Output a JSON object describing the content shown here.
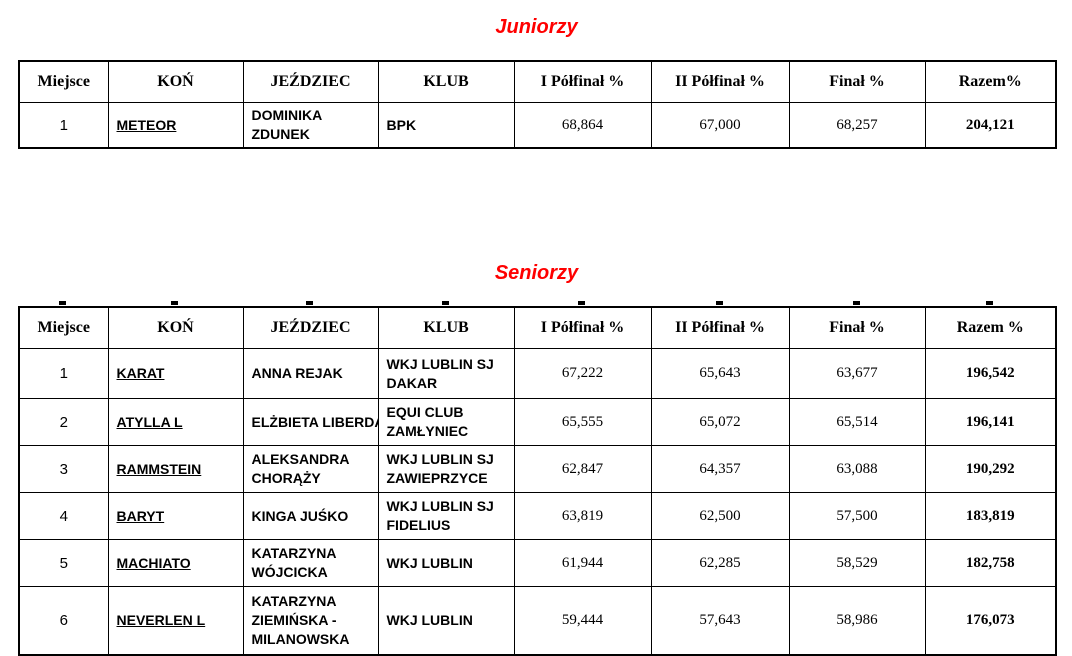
{
  "page": {
    "background": "#ffffff",
    "text_color": "#000000",
    "title_color": "#ff0000"
  },
  "sections": [
    {
      "title": "Juniorzy",
      "columns": {
        "place": "Miejsce",
        "horse": "KOŃ",
        "rider": "JEŹDZIEC",
        "club": "KLUB",
        "semi1": "I Półfinał %",
        "semi2": "II Półfinał %",
        "final": "Finał %",
        "total": "Razem%"
      },
      "rows": [
        {
          "place": "1",
          "horse": "METEOR",
          "rider": "DOMINIKA\nZDUNEK",
          "club": "BPK",
          "semi1": "68,864",
          "semi2": "67,000",
          "final": "68,257",
          "total": "204,121"
        }
      ]
    },
    {
      "title": "Seniorzy",
      "columns": {
        "place": "Miejsce",
        "horse": "KOŃ",
        "rider": "JEŹDZIEC",
        "club": "KLUB",
        "semi1": "I Półfinał %",
        "semi2": "II Półfinał %",
        "final": "Finał %",
        "total": "Razem %"
      },
      "rows": [
        {
          "place": "1",
          "horse": "KARAT",
          "rider": "ANNA REJAK",
          "club": "WKJ LUBLIN SJ\nDAKAR",
          "semi1": "67,222",
          "semi2": "65,643",
          "final": "63,677",
          "total": "196,542"
        },
        {
          "place": "2",
          "horse": "ATYLLA L",
          "rider": "ELŻBIETA LIBERDA",
          "club": "EQUI CLUB\nZAMŁYNIEC",
          "semi1": "65,555",
          "semi2": "65,072",
          "final": "65,514",
          "total": "196,141"
        },
        {
          "place": "3",
          "horse": "RAMMSTEIN",
          "rider": "ALEKSANDRA\nCHORĄŻY",
          "club": "WKJ LUBLIN SJ\nZAWIEPRZYCE",
          "semi1": "62,847",
          "semi2": "64,357",
          "final": "63,088",
          "total": "190,292"
        },
        {
          "place": "4",
          "horse": "BARYT",
          "rider": "KINGA JUŚKO",
          "club": "WKJ LUBLIN SJ\nFIDELIUS",
          "semi1": "63,819",
          "semi2": "62,500",
          "final": "57,500",
          "total": "183,819"
        },
        {
          "place": "5",
          "horse": "MACHIATO",
          "rider": "KATARZYNA\nWÓJCICKA",
          "club": "WKJ LUBLIN",
          "semi1": "61,944",
          "semi2": "62,285",
          "final": "58,529",
          "total": "182,758"
        },
        {
          "place": "6",
          "horse": "NEVERLEN L",
          "rider": "KATARZYNA\nZIEMIŃSKA -\nMILANOWSKA",
          "club": "WKJ LUBLIN",
          "semi1": "59,444",
          "semi2": "57,643",
          "final": "58,986",
          "total": "176,073"
        }
      ]
    }
  ]
}
